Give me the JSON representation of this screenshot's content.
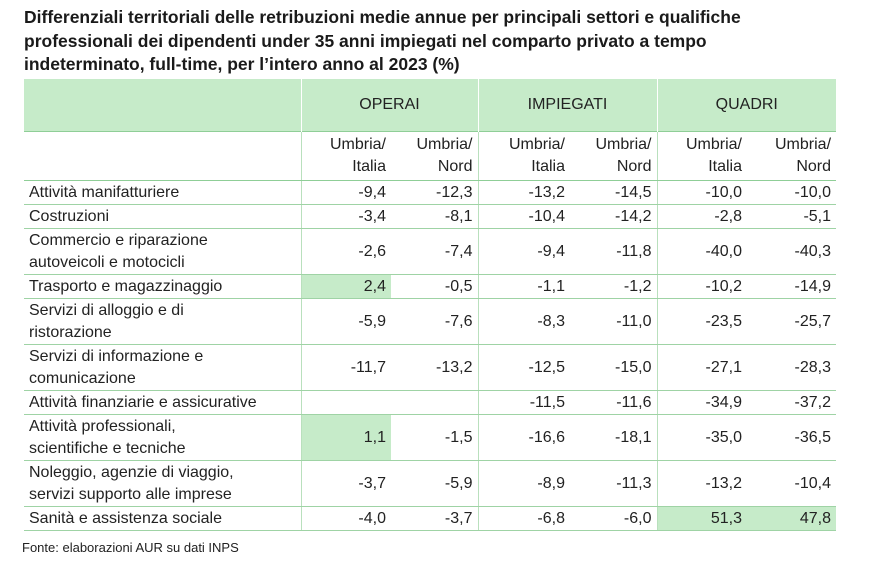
{
  "chart_data": {
    "type": "table",
    "title_lines": [
      "Differenziali territoriali delle retribuzioni medie annue per principali settori e qualifiche",
      "professionali dei dipendenti under 35 anni impiegati nel comparto privato a tempo",
      "indeterminato, full-time, per l’intero anno al 2023 (%)"
    ],
    "groups": [
      "OPERAI",
      "IMPIEGATI",
      "QUADRI"
    ],
    "subheaders": [
      [
        "Umbria/",
        "Italia"
      ],
      [
        "Umbria/",
        "Nord"
      ],
      [
        "Umbria/",
        "Italia"
      ],
      [
        "Umbria/",
        "Nord"
      ],
      [
        "Umbria/",
        "Italia"
      ],
      [
        "Umbria/",
        "Nord"
      ]
    ],
    "rows": [
      {
        "label": [
          "Attività manifatturiere"
        ],
        "values": [
          "-9,4",
          "-12,3",
          "-13,2",
          "-14,5",
          "-10,0",
          "-10,0"
        ],
        "highlight": []
      },
      {
        "label": [
          "Costruzioni"
        ],
        "values": [
          "-3,4",
          "-8,1",
          "-10,4",
          "-14,2",
          "-2,8",
          "-5,1"
        ],
        "highlight": []
      },
      {
        "label": [
          "Commercio e riparazione",
          "autoveicoli e motocicli"
        ],
        "values": [
          "-2,6",
          "-7,4",
          "-9,4",
          "-11,8",
          "-40,0",
          "-40,3"
        ],
        "highlight": []
      },
      {
        "label": [
          "Trasporto e magazzinaggio"
        ],
        "values": [
          "2,4",
          "-0,5",
          "-1,1",
          "-1,2",
          "-10,2",
          "-14,9"
        ],
        "highlight": [
          0
        ]
      },
      {
        "label": [
          "Servizi di alloggio e di",
          "ristorazione"
        ],
        "values": [
          "-5,9",
          "-7,6",
          "-8,3",
          "-11,0",
          "-23,5",
          "-25,7"
        ],
        "highlight": []
      },
      {
        "label": [
          "Servizi di informazione e",
          "comunicazione"
        ],
        "values": [
          "-11,7",
          "-13,2",
          "-12,5",
          "-15,0",
          "-27,1",
          "-28,3"
        ],
        "highlight": []
      },
      {
        "label": [
          "Attività finanziarie e assicurative"
        ],
        "values": [
          "",
          "",
          "-11,5",
          "-11,6",
          "-34,9",
          "-37,2"
        ],
        "highlight": []
      },
      {
        "label": [
          "Attività professionali,",
          "scientifiche e tecniche"
        ],
        "values": [
          "1,1",
          "-1,5",
          "-16,6",
          "-18,1",
          "-35,0",
          "-36,5"
        ],
        "highlight": [
          0
        ]
      },
      {
        "label": [
          "Noleggio, agenzie di viaggio,",
          "servizi supporto alle imprese"
        ],
        "values": [
          "-3,7",
          "-5,9",
          "-8,9",
          "-11,3",
          "-13,2",
          "-10,4"
        ],
        "highlight": []
      },
      {
        "label": [
          "Sanità e assistenza sociale"
        ],
        "values": [
          "-4,0",
          "-3,7",
          "-6,8",
          "-6,0",
          "51,3",
          "47,8"
        ],
        "highlight": [
          4,
          5
        ]
      }
    ],
    "colors": {
      "header_fill": "#c6ebc9",
      "highlight_fill": "#c6ebc9",
      "rule": "#9fd3a5"
    }
  },
  "source": "Fonte: elaborazioni AUR su dati INPS"
}
